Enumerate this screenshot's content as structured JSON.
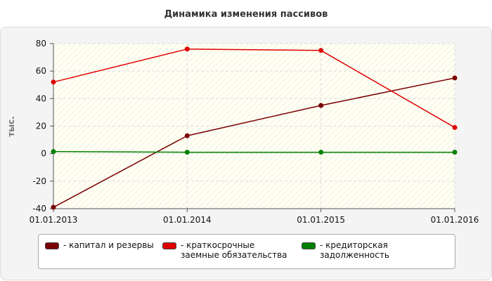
{
  "chart_data": {
    "type": "line",
    "title": "Динамика изменения пассивов",
    "y_label": "тыс.",
    "categories": [
      "01.01.2013",
      "01.01.2014",
      "01.01.2015",
      "01.01.2016"
    ],
    "series": [
      {
        "name": "- капитал и резервы",
        "color": "#7a0000",
        "values": [
          -39,
          13,
          35,
          55
        ]
      },
      {
        "name": "- краткосрочные заемные обязательства",
        "color": "#e00000",
        "values": [
          52,
          76,
          75,
          19
        ]
      },
      {
        "name": "- кредиторская задолженность",
        "color": "#008000",
        "values": [
          1.5,
          1,
          1,
          1
        ]
      }
    ],
    "ylim": [
      -40,
      80
    ],
    "yticks": [
      -40,
      -20,
      0,
      20,
      40,
      60,
      80
    ],
    "grid": true
  }
}
